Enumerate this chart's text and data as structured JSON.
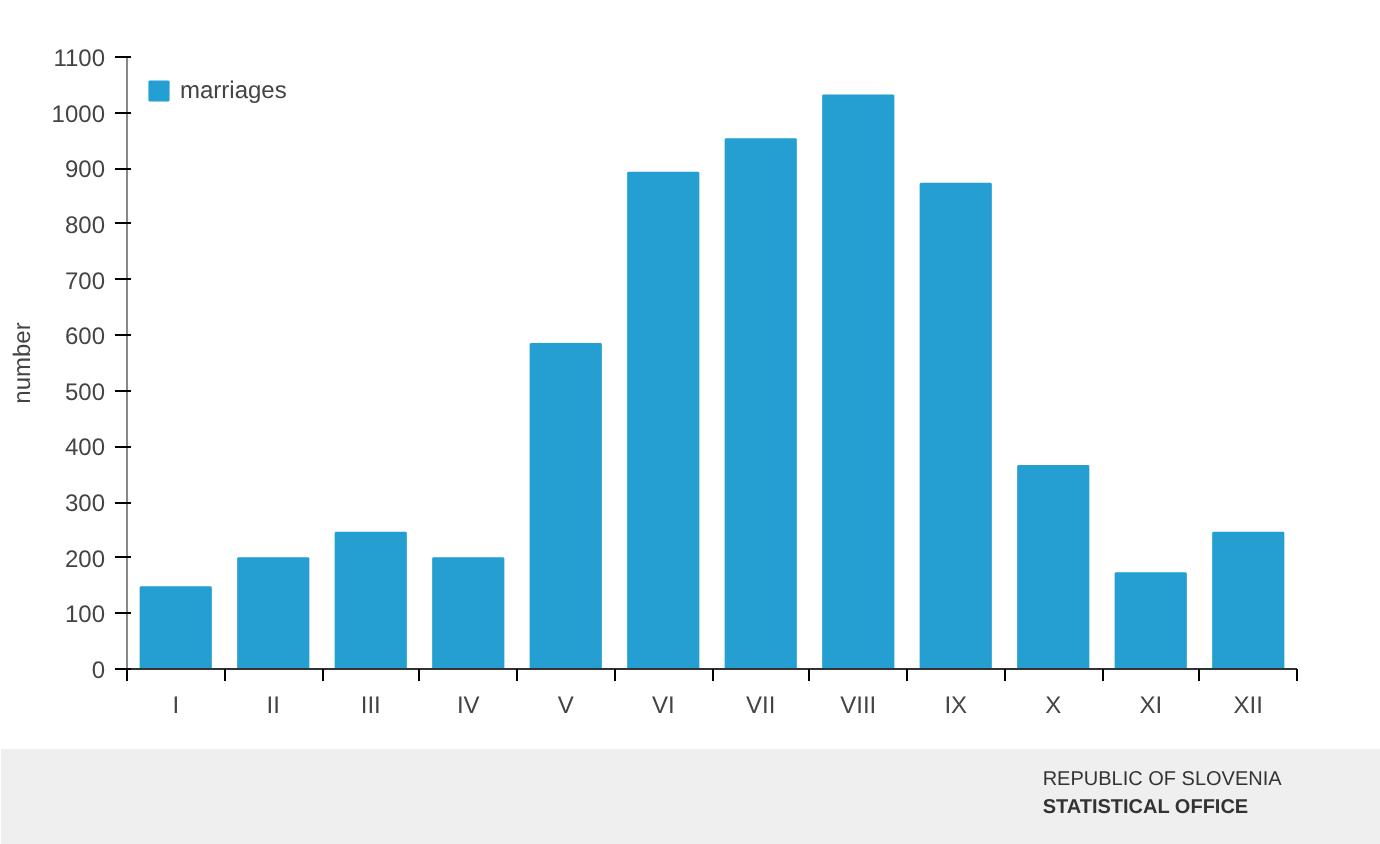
{
  "chart_data": {
    "type": "bar",
    "ylabel": "number",
    "categories": [
      "I",
      "II",
      "III",
      "IV",
      "V",
      "VI",
      "VII",
      "VIII",
      "IX",
      "X",
      "XI",
      "XII"
    ],
    "series": [
      {
        "name": "marriages",
        "color": "#259fd2",
        "values": [
          147,
          199,
          245,
          199,
          584,
          892,
          952,
          1031,
          872,
          365,
          172,
          245
        ]
      }
    ],
    "ylim": [
      0,
      1100
    ],
    "yticks": [
      0,
      100,
      200,
      300,
      400,
      500,
      600,
      700,
      800,
      900,
      1000,
      1100
    ],
    "grid": false,
    "legend": "top left",
    "annotations": [
      "REPUBLIC OF SLOVENIA",
      "STATISTICAL OFFICE"
    ]
  }
}
